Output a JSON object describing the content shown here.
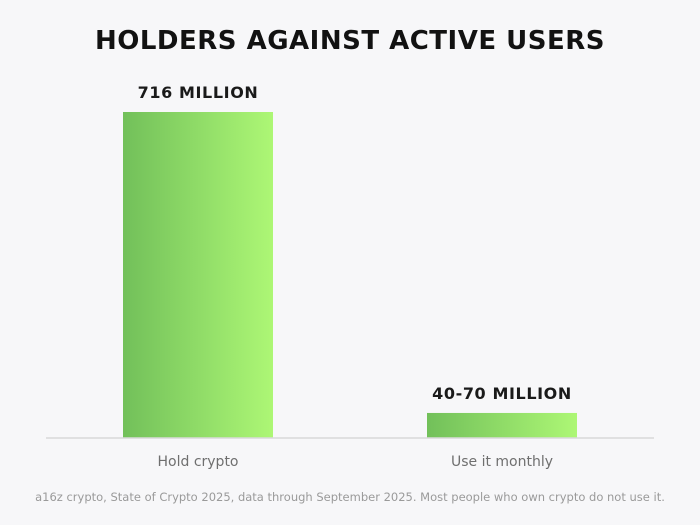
{
  "title": "HOLDERS AGAINST ACTIVE USERS",
  "source": "a16z crypto, State of Crypto 2025, data through September 2025. Most people who own crypto do not use it.",
  "colors": {
    "bar_start": "#72c05a",
    "bar_end": "#adf775",
    "axis": "#d9d9d9"
  },
  "chart_data": {
    "type": "bar",
    "categories": [
      "Hold crypto",
      "Use it monthly"
    ],
    "values": [
      716,
      55
    ],
    "value_labels": [
      "716 MILLION",
      "40-70 MILLION"
    ],
    "ylim": [
      0,
      716
    ],
    "grid": false
  }
}
